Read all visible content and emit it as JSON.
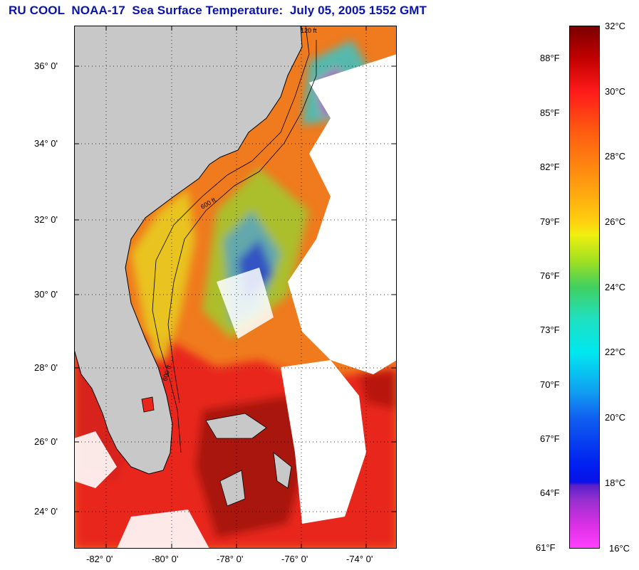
{
  "title": "RU COOL  NOAA-17  Sea Surface Temperature:  July 05, 2005 1552 GMT",
  "map": {
    "latitude_labels": [
      "36° 0'",
      "34° 0'",
      "32° 0'",
      "30° 0'",
      "28° 0'",
      "26° 0'",
      "24° 0'"
    ],
    "longitude_labels": [
      "-82° 0'",
      "-80° 0'",
      "-78° 0'",
      "-76° 0'",
      "-74° 0'"
    ],
    "isobath_labels": [
      "120 ft",
      "600 ft"
    ],
    "colors": {
      "land": "#c8c8c8",
      "cloud": "#ffffff"
    }
  },
  "colorbar": {
    "celsius_labels": [
      "32°C",
      "30°C",
      "28°C",
      "26°C",
      "24°C",
      "22°C",
      "20°C",
      "18°C",
      "16°C"
    ],
    "fahrenheit_labels": [
      "88°F",
      "85°F",
      "82°F",
      "79°F",
      "76°F",
      "73°F",
      "70°F",
      "67°F",
      "64°F",
      "61°F"
    ],
    "range_c": [
      16,
      32
    ]
  }
}
